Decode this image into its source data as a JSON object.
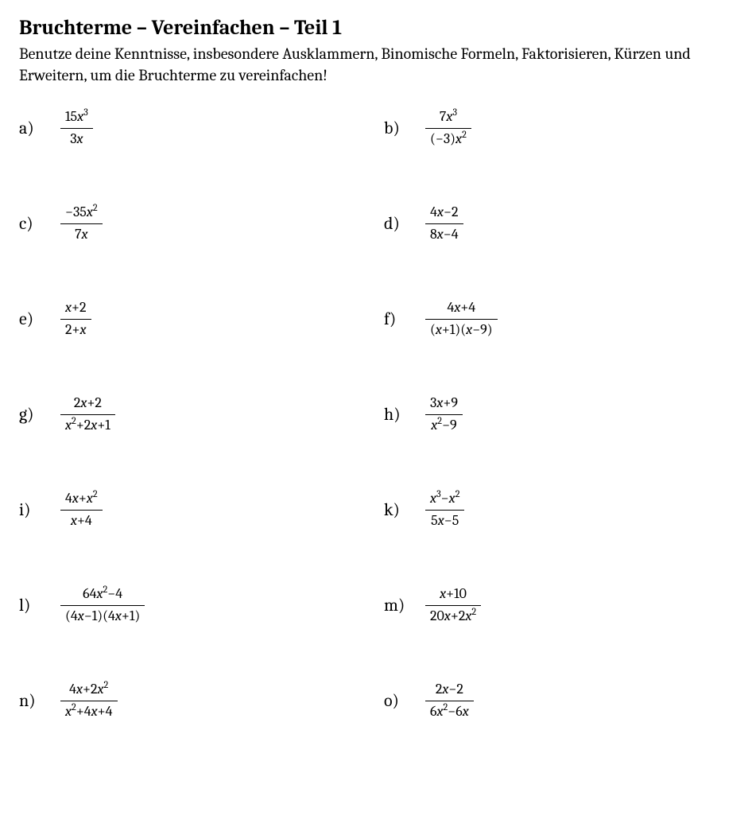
{
  "title": "Bruchterme – Vereinfachen – Teil 1",
  "intro": "Benutze deine Kenntnisse, insbesondere Ausklammern, Binomische Formeln, Faktorisieren, Kürzen und Erweitern, um die Bruchterme zu vereinfachen!",
  "problems": [
    {
      "label": "a)",
      "num": "15x^{3}",
      "den": "3x"
    },
    {
      "label": "b)",
      "num": "7x^{3}",
      "den": "(−3)x^{2}"
    },
    {
      "label": "c)",
      "num": "−35x^{2}",
      "den": "7x"
    },
    {
      "label": "d)",
      "num": "4x−2",
      "den": "8x−4"
    },
    {
      "label": "e)",
      "num": "x+2",
      "den": "2+x"
    },
    {
      "label": "f)",
      "num": "4x+4",
      "den": "(x+1)(x−9)"
    },
    {
      "label": "g)",
      "num": "2x+2",
      "den": "x^{2}+2x+1"
    },
    {
      "label": "h)",
      "num": "3x+9",
      "den": "x^{2}−9"
    },
    {
      "label": "i)",
      "num": "4x+x^{2}",
      "den": "x+4"
    },
    {
      "label": "k)",
      "num": "x^{3}−x^{2}",
      "den": "5x−5"
    },
    {
      "label": "l)",
      "num": "64x^{2}−4",
      "den": "(4x−1)(4x+1)"
    },
    {
      "label": "m)",
      "num": "x+10",
      "den": "20x+2x^{2}"
    },
    {
      "label": "n)",
      "num": "4x+2x^{2}",
      "den": "x^{2}+4x+4"
    },
    {
      "label": "o)",
      "num": "2x−2",
      "den": "6x^{2}−6x"
    }
  ]
}
